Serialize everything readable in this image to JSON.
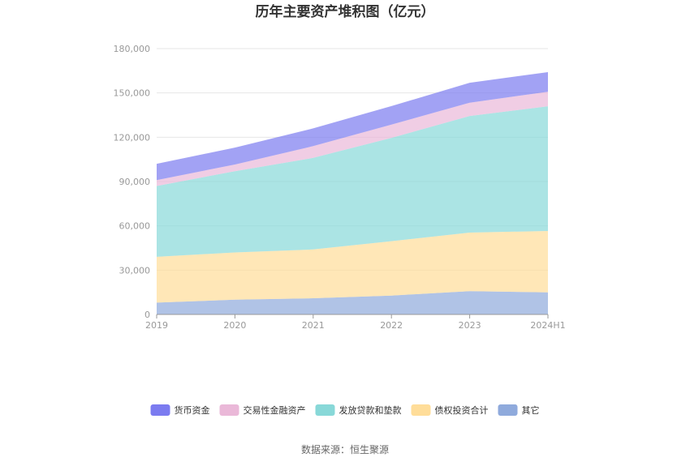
{
  "chart_data": {
    "type": "area",
    "stacked": true,
    "title": "历年主要资产堆积图（亿元）",
    "categories": [
      "2019",
      "2020",
      "2021",
      "2022",
      "2023",
      "2024H1"
    ],
    "series": [
      {
        "name": "其它",
        "color": "#8faadc",
        "values": [
          8000,
          10000,
          11000,
          12800,
          15800,
          15000
        ]
      },
      {
        "name": "债权投资合计",
        "color": "#ffdd99",
        "values": [
          31000,
          32000,
          33000,
          36800,
          39600,
          41500
        ]
      },
      {
        "name": "发放贷款和垫款",
        "color": "#88d8d8",
        "values": [
          48000,
          55000,
          62000,
          70000,
          79000,
          84500
        ]
      },
      {
        "name": "交易性金融资产",
        "color": "#eab8d8",
        "values": [
          4000,
          4500,
          8000,
          9000,
          9000,
          9800
        ]
      },
      {
        "name": "货币资金",
        "color": "#7b7bf0",
        "values": [
          11000,
          11500,
          12000,
          12500,
          13500,
          13300
        ]
      }
    ],
    "legend_order": [
      "货币资金",
      "交易性金融资产",
      "发放贷款和垫款",
      "债权投资合计",
      "其它"
    ],
    "y_ticks": [
      "0",
      "30,000",
      "60,000",
      "90,000",
      "120,000",
      "150,000",
      "180,000"
    ],
    "ylim": [
      0,
      180000
    ],
    "grid": true,
    "legend_position": "bottom"
  },
  "source_text": "数据来源：恒生聚源"
}
